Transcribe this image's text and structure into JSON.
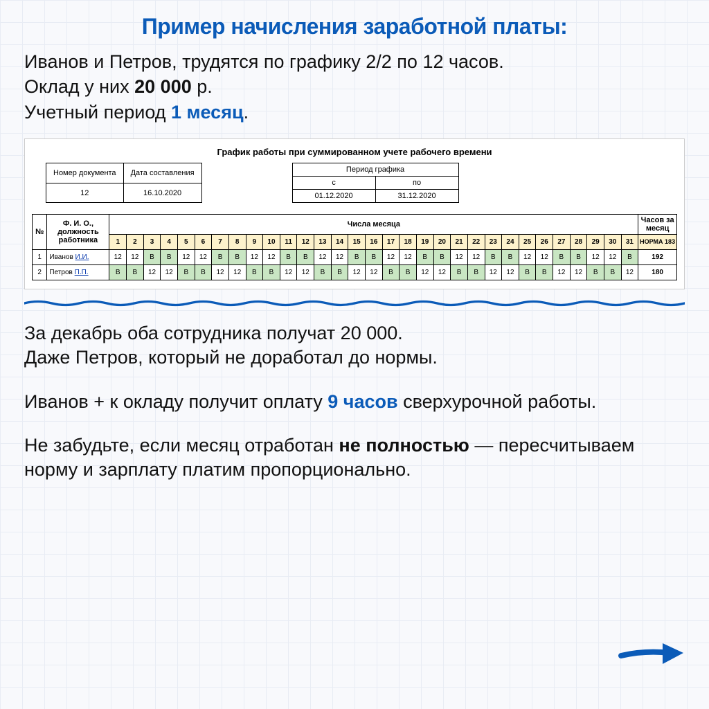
{
  "title": "Пример начисления заработной платы:",
  "intro": {
    "line1a": "Иванов и Петров, трудятся по графику 2/2 по 12 часов.",
    "line2a": "Оклад у них ",
    "line2b": "20 000",
    "line2c": " р.",
    "line3a": "Учетный период ",
    "line3b": "1 месяц",
    "line3c": "."
  },
  "doc": {
    "heading": "График работы при суммированном учете рабочего времени",
    "left": {
      "h1": "Номер документа",
      "h2": "Дата составления",
      "v1": "12",
      "v2": "16.10.2020"
    },
    "right": {
      "h": "Период графика",
      "h1": "с",
      "h2": "по",
      "v1": "01.12.2020",
      "v2": "31.12.2020"
    }
  },
  "table": {
    "col_num": "№",
    "col_name": "Ф. И. О., должность работника",
    "col_days": "Числа месяца",
    "col_total": "Часов за месяц",
    "norma": "НОРМА 183",
    "days": [
      "1",
      "2",
      "3",
      "4",
      "5",
      "6",
      "7",
      "8",
      "9",
      "10",
      "11",
      "12",
      "13",
      "14",
      "15",
      "16",
      "17",
      "18",
      "19",
      "20",
      "21",
      "22",
      "23",
      "24",
      "25",
      "26",
      "27",
      "28",
      "29",
      "30",
      "31"
    ],
    "rows": [
      {
        "n": "1",
        "name_a": "Иванов ",
        "name_b": "И.И.",
        "cells": [
          "12",
          "12",
          "В",
          "В",
          "12",
          "12",
          "В",
          "В",
          "12",
          "12",
          "В",
          "В",
          "12",
          "12",
          "В",
          "В",
          "12",
          "12",
          "В",
          "В",
          "12",
          "12",
          "В",
          "В",
          "12",
          "12",
          "В",
          "В",
          "12",
          "12",
          "В"
        ],
        "off": [
          0,
          0,
          1,
          1,
          0,
          0,
          1,
          1,
          0,
          0,
          1,
          1,
          0,
          0,
          1,
          1,
          0,
          0,
          1,
          1,
          0,
          0,
          1,
          1,
          0,
          0,
          1,
          1,
          0,
          0,
          1
        ],
        "total": "192"
      },
      {
        "n": "2",
        "name_a": "Петров ",
        "name_b": "П.П.",
        "cells": [
          "В",
          "В",
          "12",
          "12",
          "В",
          "В",
          "12",
          "12",
          "В",
          "В",
          "12",
          "12",
          "В",
          "В",
          "12",
          "12",
          "В",
          "В",
          "12",
          "12",
          "В",
          "В",
          "12",
          "12",
          "В",
          "В",
          "12",
          "12",
          "В",
          "В",
          "12"
        ],
        "off": [
          1,
          1,
          0,
          0,
          1,
          1,
          0,
          0,
          1,
          1,
          0,
          0,
          1,
          1,
          0,
          0,
          1,
          1,
          0,
          0,
          1,
          1,
          0,
          0,
          1,
          1,
          0,
          0,
          1,
          1,
          0
        ],
        "total": "180"
      }
    ]
  },
  "p1a": "За декабрь оба сотрудника получат 20 000.",
  "p1b": "Даже Петров, который не доработал до нормы.",
  "p2a": "Иванов + к окладу получит оплату ",
  "p2b": "9 часов",
  "p2c": " сверхурочной работы.",
  "p3a": "Не забудьте, если месяц отработан ",
  "p3b": "не полностью",
  "p3c": " — пересчитываем норму и зарплату платим пропорционально.",
  "colors": {
    "blue": "#0b5bb8",
    "day_head_bg": "#fdf2cc",
    "off_bg": "#c9e6c3",
    "grid": "#e8ecf4"
  }
}
